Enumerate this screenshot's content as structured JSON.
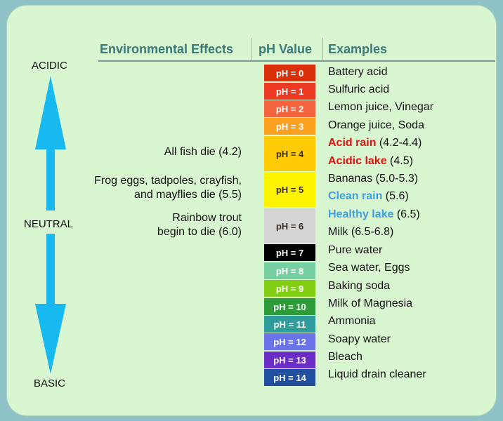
{
  "headers": {
    "effects": "Environmental Effects",
    "ph": "pH Value",
    "examples": "Examples"
  },
  "scale": {
    "acidic": "ACIDIC",
    "neutral": "NEUTRAL",
    "basic": "BASIC",
    "arrow_color": "#18b8f0"
  },
  "ph_levels": [
    {
      "label": "pH = 0",
      "color": "#d9300a"
    },
    {
      "label": "pH = 1",
      "color": "#ee3a22"
    },
    {
      "label": "pH = 2",
      "color": "#f4643e"
    },
    {
      "label": "pH = 3",
      "color": "#fca020"
    },
    {
      "label": "pH = 4",
      "color": "#fecb04"
    },
    {
      "label": "pH = 5",
      "color": "#fff400"
    },
    {
      "label": "pH = 6",
      "color": "#d5d5d5"
    },
    {
      "label": "pH = 7",
      "color": "#000000"
    },
    {
      "label": "pH = 8",
      "color": "#76cfa0"
    },
    {
      "label": "pH = 9",
      "color": "#82cf14"
    },
    {
      "label": "pH = 10",
      "color": "#2f9c3a"
    },
    {
      "label": "pH = 11",
      "color": "#2e9c9a"
    },
    {
      "label": "pH = 12",
      "color": "#6a74e8"
    },
    {
      "label": "pH = 13",
      "color": "#6a2ec6"
    },
    {
      "label": "pH = 14",
      "color": "#1f4f9e"
    }
  ],
  "examples": [
    {
      "text": "Battery acid"
    },
    {
      "text": "Sulfuric acid"
    },
    {
      "text": "Lemon juice, Vinegar"
    },
    {
      "text": "Orange juice, Soda"
    },
    {
      "highlight": "Acid rain",
      "highlight_color": "red",
      "rest": " (4.2-4.4)"
    },
    {
      "highlight": "Acidic lake",
      "highlight_color": "red",
      "rest": " (4.5)"
    },
    {
      "text": "Bananas (5.0-5.3)"
    },
    {
      "highlight": "Clean rain",
      "highlight_color": "blue",
      "rest": " (5.6)"
    },
    {
      "highlight": "Healthy lake",
      "highlight_color": "blue",
      "rest": " (6.5)"
    },
    {
      "text": "Milk (6.5-6.8)"
    },
    {
      "text": "Pure water"
    },
    {
      "text": "Sea water, Eggs"
    },
    {
      "text": "Baking soda"
    },
    {
      "text": "Milk of Magnesia"
    },
    {
      "text": "Ammonia"
    },
    {
      "text": "Soapy water"
    },
    {
      "text": "Bleach"
    },
    {
      "text": "Liquid drain cleaner"
    }
  ],
  "effects": [
    {
      "line1": "All fish die (4.2)",
      "line2": ""
    },
    {
      "line1": "Frog eggs, tadpoles, crayfish,",
      "line2": "and mayflies die (5.5)"
    },
    {
      "line1": "Rainbow trout",
      "line2": "begin to die (6.0)"
    }
  ]
}
